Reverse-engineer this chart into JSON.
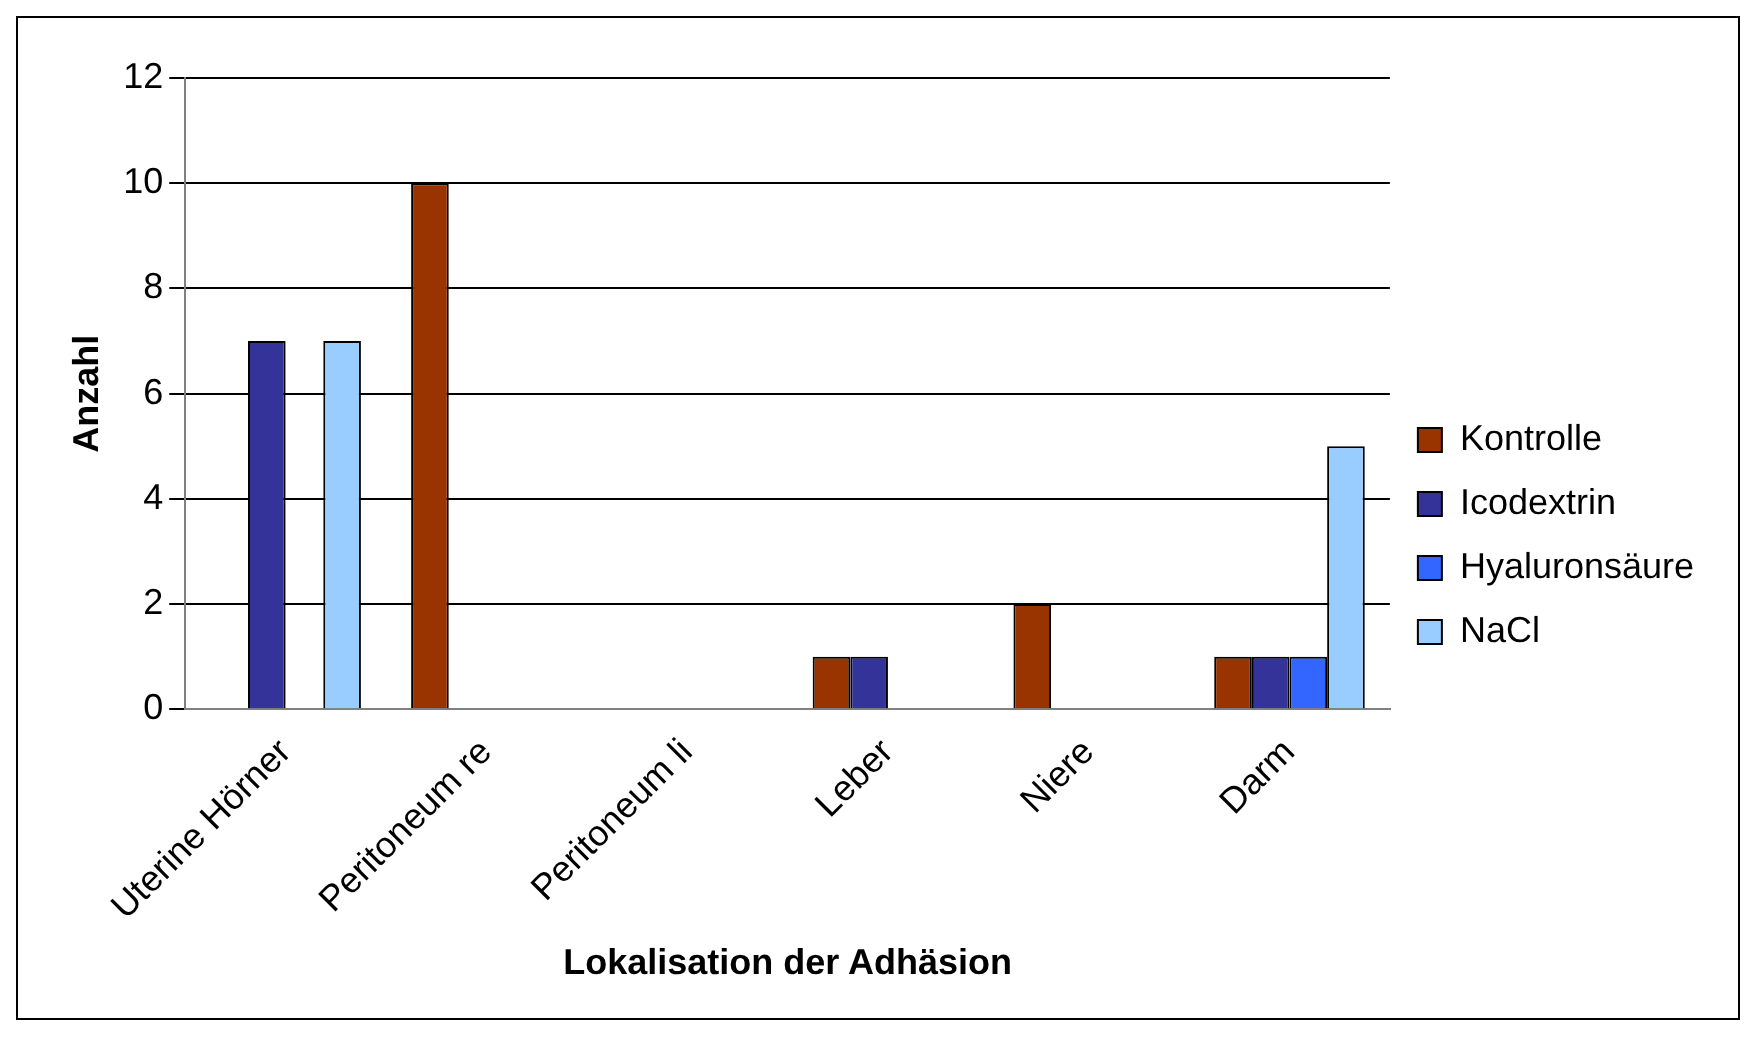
{
  "chart_data": {
    "type": "bar",
    "xlabel": "Lokalisation der Adhäsion",
    "ylabel": "Anzahl",
    "categories": [
      "Uterine Hörner",
      "Peritoneum re",
      "Peritoneum li",
      "Leber",
      "Niere",
      "Darm"
    ],
    "series": [
      {
        "name": "Kontrolle",
        "color": "#993300",
        "values": [
          0,
          10,
          0,
          1,
          2,
          1
        ]
      },
      {
        "name": "Icodextrin",
        "color": "#333399",
        "values": [
          7,
          0,
          0,
          1,
          0,
          1
        ]
      },
      {
        "name": "Hyaluronsäure",
        "color": "#3366ff",
        "values": [
          0,
          0,
          0,
          0,
          0,
          1
        ]
      },
      {
        "name": "NaCl",
        "color": "#99ccff",
        "values": [
          7,
          0,
          0,
          0,
          0,
          5
        ]
      }
    ],
    "ylim": [
      0,
      12
    ],
    "yticks": [
      0,
      2,
      4,
      6,
      8,
      10,
      12
    ],
    "grid": "y",
    "legend": "right"
  }
}
